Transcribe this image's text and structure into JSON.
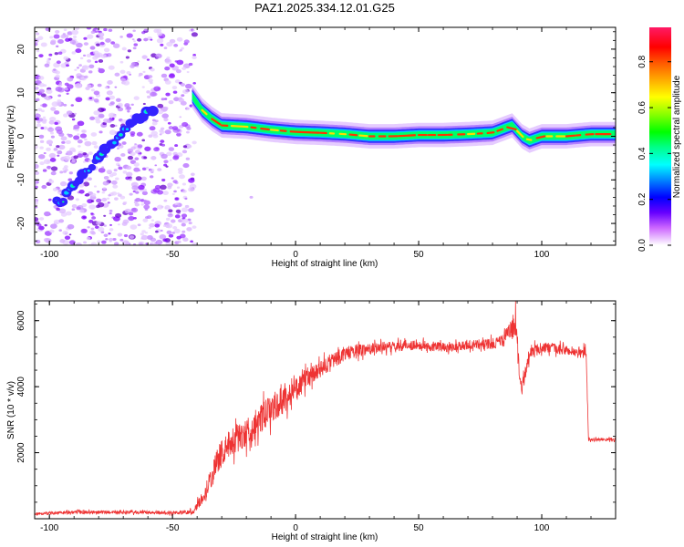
{
  "chart_data": [
    {
      "type": "heatmap",
      "title": "PAZ1.2025.334.12.01.G25",
      "xlabel": "Height of straight line (km)",
      "ylabel": "Frequency (Hz)",
      "xlim": [
        -106,
        130
      ],
      "ylim": [
        -25,
        25
      ],
      "xticks": [
        -100,
        -50,
        0,
        50,
        100
      ],
      "yticks": [
        -20,
        -10,
        0,
        10,
        20
      ],
      "colorbar": {
        "label": "Normalized spectral amplitude",
        "range": [
          0,
          0.95
        ],
        "ticks": [
          0.0,
          0.2,
          0.4,
          0.6,
          0.8
        ]
      },
      "noise_region_x": [
        -106,
        -41
      ],
      "ridge": [
        {
          "x": -95,
          "y": -15
        },
        {
          "x": -90,
          "y": -11
        },
        {
          "x": -85,
          "y": -8
        },
        {
          "x": -80,
          "y": -5
        },
        {
          "x": -75,
          "y": -2
        },
        {
          "x": -70,
          "y": 1
        },
        {
          "x": -65,
          "y": 3.5
        },
        {
          "x": -60,
          "y": 5.5
        },
        {
          "x": -43,
          "y": 10
        },
        {
          "x": -38,
          "y": 6
        },
        {
          "x": -34,
          "y": 4
        },
        {
          "x": -30,
          "y": 2.5
        },
        {
          "x": -20,
          "y": 2.2
        },
        {
          "x": -10,
          "y": 1.5
        },
        {
          "x": 0,
          "y": 1
        },
        {
          "x": 10,
          "y": 0.8
        },
        {
          "x": 20,
          "y": 0.5
        },
        {
          "x": 30,
          "y": 0
        },
        {
          "x": 40,
          "y": 0
        },
        {
          "x": 50,
          "y": 0.3
        },
        {
          "x": 60,
          "y": 0.3
        },
        {
          "x": 70,
          "y": 0.5
        },
        {
          "x": 80,
          "y": 0.8
        },
        {
          "x": 88,
          "y": 2.5
        },
        {
          "x": 92,
          "y": 0
        },
        {
          "x": 95,
          "y": -1
        },
        {
          "x": 100,
          "y": 0
        },
        {
          "x": 110,
          "y": 0
        },
        {
          "x": 120,
          "y": 0.5
        },
        {
          "x": 130,
          "y": 0.5
        }
      ]
    },
    {
      "type": "line",
      "xlabel": "Height of straight line (km)",
      "ylabel": "SNR (10 * v/v)",
      "xlim": [
        -106,
        130
      ],
      "ylim": [
        0,
        6600
      ],
      "xticks": [
        -100,
        -50,
        0,
        50,
        100
      ],
      "yticks": [
        2000,
        4000,
        6000
      ],
      "series": [
        {
          "name": "SNR",
          "color": "#ee3333",
          "x": [
            -106,
            -90,
            -70,
            -50,
            -42,
            -38,
            -34,
            -32,
            -30,
            -25,
            -20,
            -15,
            -10,
            -5,
            0,
            5,
            10,
            15,
            20,
            25,
            30,
            35,
            40,
            45,
            50,
            60,
            70,
            80,
            84,
            86,
            88,
            89,
            90,
            91,
            92,
            95,
            100,
            110,
            115,
            118,
            119,
            120,
            125,
            130
          ],
          "y": [
            150,
            200,
            200,
            180,
            200,
            600,
            1300,
            1700,
            2000,
            2400,
            2600,
            2950,
            3300,
            3600,
            3900,
            4250,
            4500,
            4800,
            5000,
            5100,
            5150,
            5200,
            5200,
            5250,
            5250,
            5200,
            5250,
            5300,
            5400,
            5600,
            5800,
            6000,
            5300,
            4400,
            4000,
            5000,
            5200,
            5100,
            5000,
            5050,
            2400,
            2400,
            2400,
            2400
          ],
          "noise": [
            40,
            60,
            60,
            60,
            80,
            200,
            400,
            450,
            450,
            500,
            500,
            500,
            500,
            450,
            400,
            350,
            300,
            280,
            250,
            220,
            200,
            180,
            180,
            160,
            160,
            160,
            160,
            180,
            200,
            250,
            350,
            600,
            500,
            400,
            300,
            200,
            200,
            160,
            160,
            200,
            60,
            50,
            50,
            50
          ]
        }
      ]
    }
  ]
}
